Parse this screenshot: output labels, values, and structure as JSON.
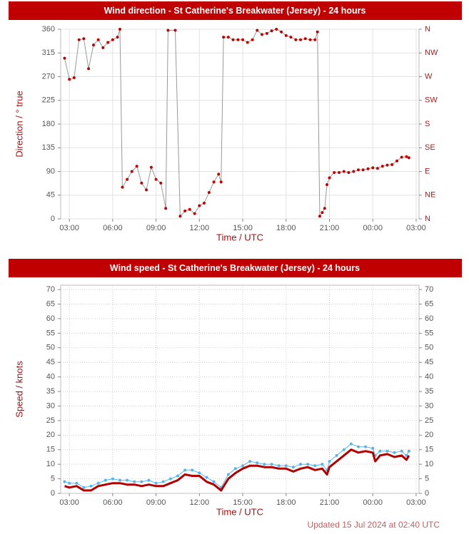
{
  "chart_data": [
    {
      "type": "line",
      "title": "Wind direction - St Catherine's Breakwater (Jersey) - 24 hours",
      "x_label": "Time / UTC",
      "y_label": "Direction / ° true",
      "xlim": [
        2.4,
        27.2
      ],
      "ylim": [
        0,
        360
      ],
      "y2lim": [
        0,
        360
      ],
      "grid": true,
      "xticks": [
        {
          "value": 3,
          "label": "03:00"
        },
        {
          "value": 6,
          "label": "06:00"
        },
        {
          "value": 9,
          "label": "09:00"
        },
        {
          "value": 12,
          "label": "12:00"
        },
        {
          "value": 15,
          "label": "15:00"
        },
        {
          "value": 18,
          "label": "18:00"
        },
        {
          "value": 21,
          "label": "21:00"
        },
        {
          "value": 24,
          "label": "00:00"
        },
        {
          "value": 27,
          "label": "03:00"
        }
      ],
      "yticks": [
        0,
        45,
        90,
        135,
        180,
        225,
        270,
        315,
        360
      ],
      "y2ticks": [
        {
          "value": 0,
          "label": "N"
        },
        {
          "value": 45,
          "label": "NE"
        },
        {
          "value": 90,
          "label": "E"
        },
        {
          "value": 135,
          "label": "SE"
        },
        {
          "value": 180,
          "label": "S"
        },
        {
          "value": 225,
          "label": "SW"
        },
        {
          "value": 270,
          "label": "W"
        },
        {
          "value": 315,
          "label": "NW"
        },
        {
          "value": 360,
          "label": "N"
        }
      ],
      "x": [
        2.67,
        3.0,
        3.33,
        3.67,
        4.0,
        4.33,
        4.67,
        5.0,
        5.33,
        5.67,
        6.0,
        6.33,
        6.5,
        6.67,
        7.0,
        7.33,
        7.67,
        8.0,
        8.33,
        8.67,
        9.0,
        9.33,
        9.67,
        9.83,
        10.33,
        10.67,
        11.0,
        11.33,
        11.67,
        12.0,
        12.33,
        12.67,
        13.0,
        13.33,
        13.5,
        13.67,
        14.0,
        14.33,
        14.67,
        15.0,
        15.33,
        15.67,
        16.0,
        16.33,
        16.67,
        17.0,
        17.33,
        17.67,
        18.0,
        18.33,
        18.67,
        19.0,
        19.33,
        19.67,
        20.0,
        20.17,
        20.33,
        20.5,
        20.67,
        20.83,
        21.0,
        21.33,
        21.67,
        22.0,
        22.33,
        22.67,
        23.0,
        23.33,
        23.67,
        24.0,
        24.33,
        24.67,
        25.0,
        25.33,
        25.67,
        26.0,
        26.33,
        26.5
      ],
      "series": [
        {
          "color": "#c00000",
          "line_color": "#999999",
          "markers": true,
          "values": [
            305,
            265,
            268,
            340,
            342,
            285,
            330,
            340,
            325,
            335,
            340,
            345,
            360,
            60,
            75,
            90,
            100,
            68,
            55,
            98,
            75,
            68,
            20,
            358,
            358,
            5,
            15,
            18,
            10,
            25,
            30,
            50,
            70,
            85,
            70,
            345,
            345,
            340,
            340,
            340,
            335,
            340,
            358,
            350,
            352,
            357,
            360,
            355,
            348,
            345,
            340,
            340,
            342,
            340,
            340,
            355,
            5,
            12,
            20,
            65,
            78,
            88,
            88,
            90,
            88,
            90,
            93,
            93,
            95,
            97,
            96,
            100,
            102,
            103,
            110,
            117,
            118,
            116
          ]
        }
      ]
    },
    {
      "type": "line",
      "title": "Wind speed - St Catherine's Breakwater (Jersey) - 24 hours",
      "x_label": "Time / UTC",
      "y_label": "Speed / knots",
      "xlim": [
        2.4,
        27.2
      ],
      "ylim": [
        0,
        71.5
      ],
      "y2lim": [
        0,
        71.5
      ],
      "grid": true,
      "xticks": [
        {
          "value": 3,
          "label": "03:00"
        },
        {
          "value": 6,
          "label": "06:00"
        },
        {
          "value": 9,
          "label": "09:00"
        },
        {
          "value": 12,
          "label": "12:00"
        },
        {
          "value": 15,
          "label": "15:00"
        },
        {
          "value": 18,
          "label": "18:00"
        },
        {
          "value": 21,
          "label": "21:00"
        },
        {
          "value": 24,
          "label": "00:00"
        },
        {
          "value": 27,
          "label": "03:00"
        }
      ],
      "yticks": [
        0,
        5,
        10,
        15,
        20,
        25,
        30,
        35,
        40,
        45,
        50,
        55,
        60,
        65,
        70
      ],
      "y2ticks": [
        0,
        5,
        10,
        15,
        20,
        25,
        30,
        35,
        40,
        45,
        50,
        55,
        60,
        65,
        70
      ],
      "x": [
        2.67,
        3.0,
        3.5,
        4.0,
        4.5,
        5.0,
        5.5,
        6.0,
        6.5,
        7.0,
        7.5,
        8.0,
        8.5,
        9.0,
        9.5,
        10.0,
        10.5,
        11.0,
        11.5,
        12.0,
        12.5,
        13.0,
        13.5,
        14.0,
        14.5,
        15.0,
        15.5,
        16.0,
        16.5,
        17.0,
        17.5,
        18.0,
        18.5,
        19.0,
        19.5,
        20.0,
        20.5,
        20.83,
        21.0,
        21.5,
        22.0,
        22.5,
        23.0,
        23.5,
        24.0,
        24.17,
        24.5,
        25.0,
        25.5,
        26.0,
        26.33,
        26.5
      ],
      "series": [
        {
          "color": "#5ab4e8",
          "markers": true,
          "values": [
            4,
            3.5,
            3.5,
            2,
            2.5,
            3.5,
            4.5,
            5,
            4.5,
            4.5,
            4,
            4,
            4.5,
            3.5,
            4,
            5,
            6,
            8,
            8,
            7,
            5.5,
            4,
            2,
            6.5,
            8.5,
            9.5,
            11,
            10.5,
            10,
            10,
            9.5,
            9.5,
            9,
            10,
            10,
            9.5,
            10,
            8,
            11,
            13,
            15,
            17,
            16,
            16,
            15.5,
            13,
            14.5,
            14.5,
            14,
            14.5,
            13,
            14.5
          ]
        },
        {
          "color": "#b00000",
          "markers": false,
          "values": [
            2.5,
            2,
            2.5,
            1,
            1,
            2.5,
            3,
            3.5,
            3.5,
            3,
            3,
            2.5,
            3,
            2.5,
            2.5,
            3.5,
            4.5,
            6.5,
            6,
            6,
            4,
            3,
            1,
            5,
            7,
            8.5,
            9.5,
            9.5,
            9,
            9,
            8.5,
            8.5,
            7.5,
            8.5,
            9,
            8,
            8.5,
            6.5,
            9,
            11,
            13,
            15,
            14,
            14.5,
            14,
            11,
            13,
            13.5,
            12.5,
            13,
            11.5,
            13
          ]
        }
      ]
    }
  ],
  "footer": "Updated 15 Jul 2024 at 02:40 UTC"
}
